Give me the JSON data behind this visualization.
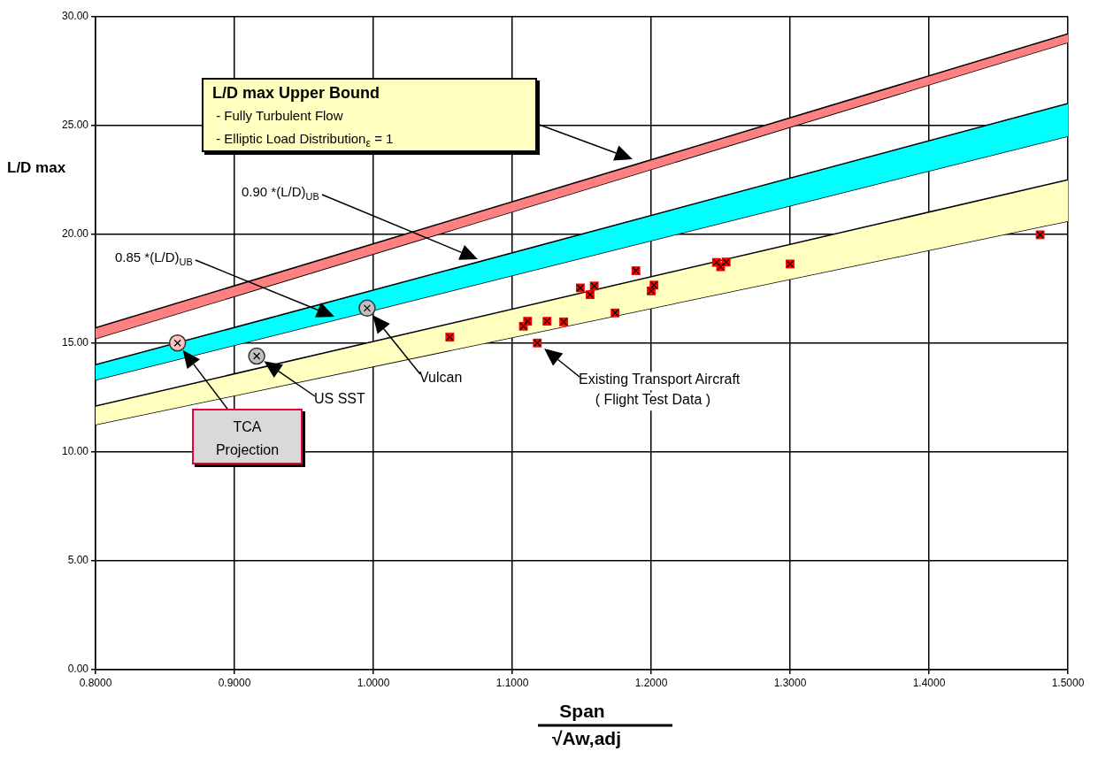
{
  "chart_data": {
    "type": "scatter",
    "xlabel": "Span\n√Aw,adj",
    "ylabel": "L/D max",
    "xlim": [
      0.8,
      1.5
    ],
    "xticks": [
      {
        "value": 0.8,
        "label": "0.8000"
      },
      {
        "value": 0.9,
        "label": "0.9000"
      },
      {
        "value": 1.0,
        "label": "1.0000"
      },
      {
        "value": 1.1,
        "label": "1.1000"
      },
      {
        "value": 1.2,
        "label": "1.2000"
      },
      {
        "value": 1.3,
        "label": "1.3000"
      },
      {
        "value": 1.4,
        "label": "1.4000"
      },
      {
        "value": 1.5,
        "label": "1.5000"
      }
    ],
    "ylim": [
      0,
      30
    ],
    "yticks": [
      {
        "value": 0,
        "label": "0.00"
      },
      {
        "value": 5,
        "label": "5.00"
      },
      {
        "value": 10,
        "label": "10.00"
      },
      {
        "value": 15,
        "label": "15.00"
      },
      {
        "value": 20,
        "label": "20.00"
      },
      {
        "value": 25,
        "label": "25.00"
      },
      {
        "value": 30,
        "label": "30.00"
      }
    ],
    "grid": true,
    "legend": false,
    "series": [
      {
        "type": "area",
        "x": [
          0.8,
          1.5
        ],
        "values": [
          15.7,
          29.2
        ],
        "color": "#ff8080"
      },
      {
        "type": "line",
        "x": [
          0.8,
          1.5
        ],
        "values": [
          15.2,
          28.8
        ],
        "color": "#000000"
      },
      {
        "type": "area",
        "x": [
          0.8,
          1.5
        ],
        "values": [
          14.0,
          26.0
        ],
        "color": "#00ffff"
      },
      {
        "type": "line",
        "x": [
          0.8,
          1.5
        ],
        "values": [
          13.3,
          24.5
        ],
        "color": "#000000"
      },
      {
        "type": "area",
        "x": [
          0.8,
          1.5
        ],
        "values": [
          12.1,
          22.5
        ],
        "color": "#ffffc0"
      },
      {
        "type": "line",
        "x": [
          0.8,
          1.5
        ],
        "values": [
          11.25,
          20.6
        ],
        "color": "#000000"
      },
      {
        "type": "scatter",
        "marker": "square",
        "color": "#ff0000",
        "x": [
          1.055,
          1.111,
          1.108,
          1.118,
          1.125,
          1.137,
          1.149,
          1.159,
          1.156,
          1.174,
          1.189,
          1.202,
          1.2,
          1.247,
          1.25,
          1.254,
          1.3,
          1.48
        ],
        "values": [
          15.27,
          16.0,
          15.77,
          15.0,
          16.0,
          15.97,
          17.53,
          17.62,
          17.22,
          16.38,
          18.32,
          17.66,
          17.39,
          18.7,
          18.5,
          18.72,
          18.63,
          19.97
        ]
      },
      {
        "type": "scatter",
        "marker": "circle",
        "color": "#ffc0c0",
        "x": [
          0.859
        ],
        "values": [
          15.0
        ]
      },
      {
        "type": "scatter",
        "marker": "circle",
        "color": "#c0c0c0",
        "x": [
          0.916
        ],
        "values": [
          14.4
        ]
      },
      {
        "type": "scatter",
        "marker": "circle",
        "color": "#c0c0c0",
        "x": [
          0.9955
        ],
        "values": [
          16.6
        ]
      }
    ],
    "annotations": [
      "L/D max Upper Bound\n - Fully Turbulent Flow\n - Elliptic Load Distribution$_{ε}$ = 1",
      "0.90 *(L/D)$_{UB}$",
      "0.85 *(L/D)$_{UB}$",
      "Existing Transport Aircraft\n( Flight Test Data )",
      "TCA\nProjection",
      "US SST",
      "Vulcan"
    ]
  }
}
